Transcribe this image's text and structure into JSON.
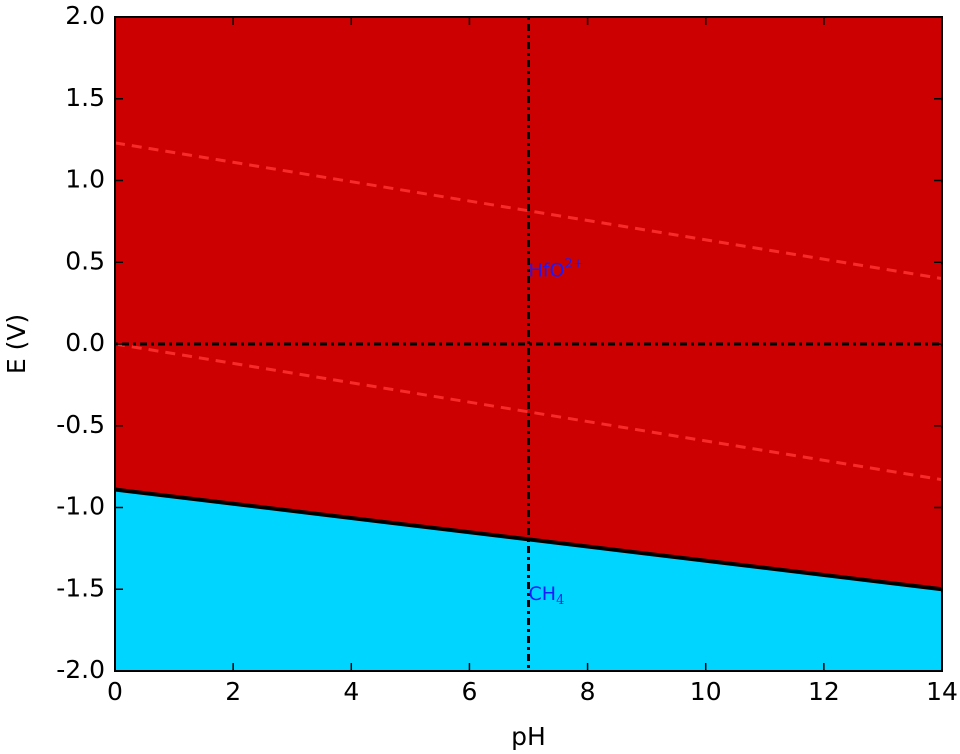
{
  "chart_data": {
    "type": "pourbaix",
    "xlabel": "pH",
    "ylabel": "E (V)",
    "xlim": [
      0,
      14
    ],
    "ylim": [
      -2,
      2
    ],
    "xticks": [
      0,
      2,
      4,
      6,
      8,
      10,
      12,
      14
    ],
    "yticks": [
      {
        "value": -2,
        "label": "-2.0"
      },
      -1.5,
      {
        "value": -1,
        "label": "-1.0"
      },
      -0.5,
      {
        "value": 0,
        "label": "0.0"
      },
      0.5,
      {
        "value": 1,
        "label": "1.0"
      },
      1.5,
      {
        "value": 2,
        "label": "2.0"
      }
    ],
    "boundary": {
      "x": [
        0,
        14
      ],
      "values": [
        -0.89,
        -1.5
      ],
      "color": "#000000"
    },
    "regions": [
      {
        "side": "above",
        "color": "#cc0000",
        "label": "HfO",
        "sup": "2+",
        "label_x": 7,
        "label_y": 0.45
      },
      {
        "side": "below",
        "color": "#00d5ff",
        "label": "CH",
        "sub": "4",
        "label_x": 7,
        "label_y": -1.53
      }
    ],
    "water_lines": {
      "color": "#ff3333",
      "lines": [
        {
          "x": [
            0,
            14
          ],
          "values": [
            1.23,
            0.4
          ]
        },
        {
          "x": [
            0,
            14
          ],
          "values": [
            0,
            -0.83
          ]
        }
      ]
    },
    "vline": 7,
    "hline": 0,
    "label_color": "#1a1aff"
  }
}
